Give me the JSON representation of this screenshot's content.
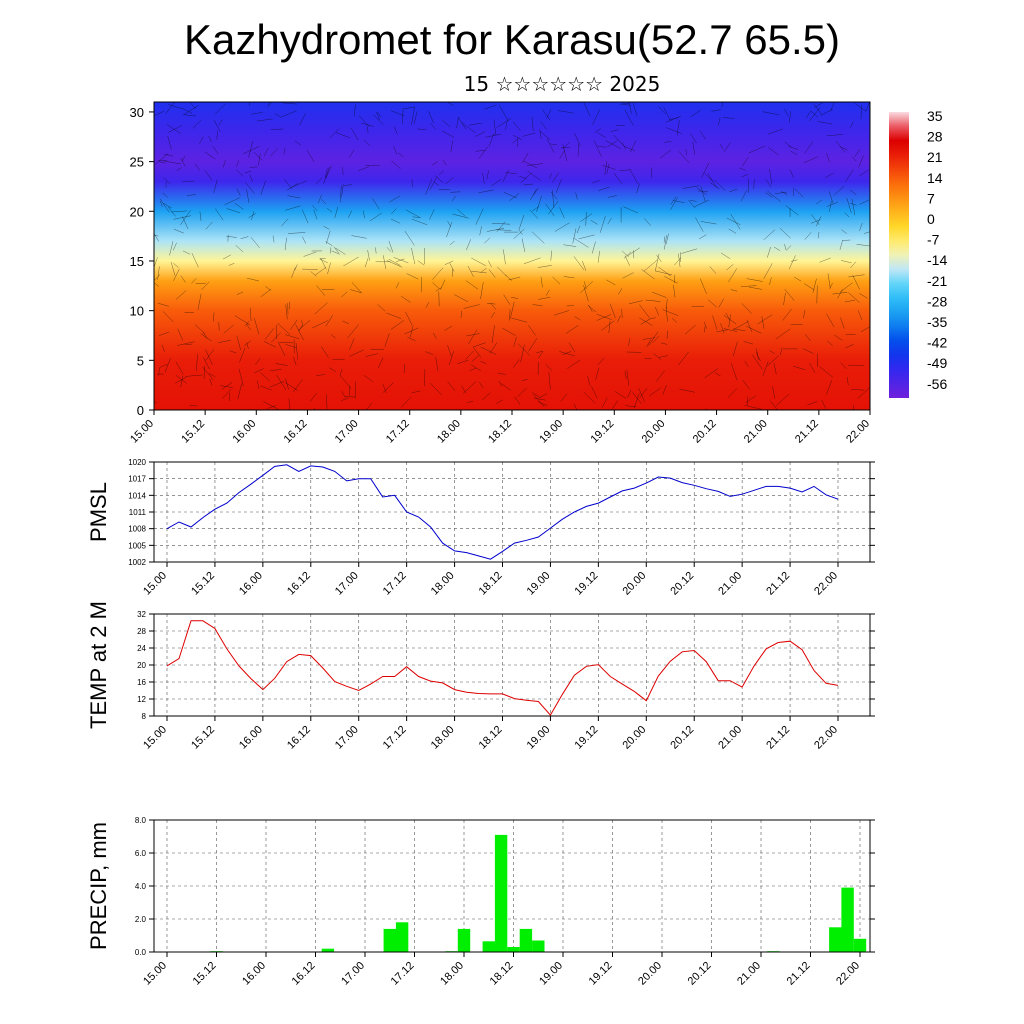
{
  "title": "Kazhydromet for Karasu(52.7 65.5)",
  "subtitle": "15 ☆☆☆☆☆☆ 2025",
  "time_labels": [
    "15.00",
    "15.12",
    "16.00",
    "16.12",
    "17.00",
    "17.12",
    "18.00",
    "18.12",
    "19.00",
    "19.12",
    "20.00",
    "20.12",
    "21.00",
    "21.12",
    "22.00"
  ],
  "colors": {
    "pmsl": "#0000cc",
    "temp": "#dd0000",
    "precip": "#00ee00"
  },
  "chart_data": [
    {
      "type": "heatmap",
      "name": "cross-section",
      "ylim": [
        0,
        31
      ],
      "yticks": [
        0,
        5,
        10,
        15,
        20,
        25,
        30
      ],
      "colorbar_ticks": [
        35,
        28,
        21,
        14,
        7,
        0,
        -7,
        -14,
        -21,
        -28,
        -35,
        -42,
        -49,
        -56
      ],
      "colorbar_range": [
        -60,
        40
      ],
      "level_profile": [
        {
          "h": 0,
          "v": 27
        },
        {
          "h": 5,
          "v": 25
        },
        {
          "h": 10,
          "v": 17
        },
        {
          "h": 13,
          "v": 8
        },
        {
          "h": 15,
          "v": -8
        },
        {
          "h": 17,
          "v": -16
        },
        {
          "h": 20,
          "v": -30
        },
        {
          "h": 23,
          "v": -52
        },
        {
          "h": 25,
          "v": -57
        },
        {
          "h": 28,
          "v": -52
        },
        {
          "h": 31,
          "v": -47
        }
      ]
    },
    {
      "type": "line",
      "name": "pmsl",
      "ylabel": "PMSL",
      "ylim": [
        1002,
        1020
      ],
      "yticks": [
        1002,
        1005,
        1008,
        1011,
        1014,
        1017,
        1020
      ],
      "values": [
        1008,
        1009.2,
        1008.3,
        1010,
        1011.5,
        1012.6,
        1014.5,
        1016,
        1017.6,
        1019.2,
        1019.5,
        1018.3,
        1019.3,
        1019.1,
        1018.3,
        1016.6,
        1017,
        1017,
        1013.7,
        1014,
        1011,
        1010.1,
        1008.3,
        1005.4,
        1004,
        1003.7,
        1003.1,
        1002.5,
        1003.9,
        1005.4,
        1005.9,
        1006.5,
        1008.1,
        1009.7,
        1011,
        1012,
        1012.6,
        1013.7,
        1014.8,
        1015.3,
        1016.2,
        1017.3,
        1017.1,
        1016.3,
        1015.8,
        1015.2,
        1014.7,
        1013.8,
        1014.2,
        1014.9,
        1015.6,
        1015.6,
        1015.3,
        1014.6,
        1015.6,
        1014.1,
        1013.3
      ]
    },
    {
      "type": "line",
      "name": "temp",
      "ylabel": "TEMP at 2 M",
      "ylim": [
        8,
        32
      ],
      "yticks": [
        8,
        12,
        16,
        20,
        24,
        28,
        32
      ],
      "values": [
        19.8,
        21.5,
        30.4,
        30.4,
        28.6,
        23.8,
        19.8,
        16.8,
        14.2,
        16.9,
        20.8,
        22.5,
        22.2,
        19.3,
        16.1,
        15,
        14,
        15.5,
        17.3,
        17.3,
        19.6,
        17.3,
        16.2,
        15.8,
        14.2,
        13.6,
        13.3,
        13.2,
        13.2,
        12.1,
        11.7,
        11.4,
        8.2,
        13.1,
        17.6,
        19.7,
        20.1,
        17.3,
        15.5,
        13.8,
        11.6,
        17.4,
        20.9,
        23.1,
        23.4,
        20.8,
        16.3,
        16.3,
        14.8,
        19.8,
        23.8,
        25.3,
        25.6,
        23.6,
        18.7,
        15.7,
        15.2
      ]
    },
    {
      "type": "bar",
      "name": "precip",
      "ylabel": "PRECIP, mm",
      "ylim": [
        0,
        8
      ],
      "yticks": [
        "0.0",
        "2.0",
        "4.0",
        "6.0",
        "8.0"
      ],
      "values": [
        0,
        0,
        0,
        0,
        0.05,
        0,
        0,
        0,
        0,
        0,
        0.02,
        0,
        0,
        0.2,
        0,
        0,
        0,
        0,
        1.4,
        1.8,
        0,
        0,
        0,
        0.05,
        1.4,
        0,
        0.65,
        7.1,
        0.3,
        1.4,
        0.7,
        0,
        0,
        0,
        0,
        0,
        0,
        0,
        0,
        0,
        0,
        0,
        0,
        0,
        0,
        0,
        0,
        0,
        0,
        0.05,
        0,
        0,
        0,
        0,
        1.5,
        3.9,
        0.8
      ]
    }
  ]
}
